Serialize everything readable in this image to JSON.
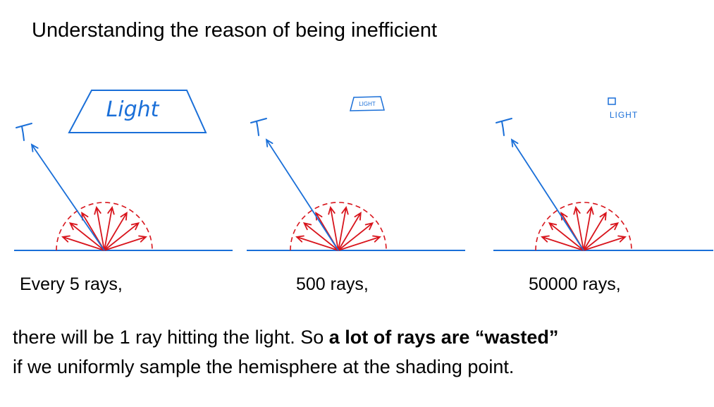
{
  "title": "Understanding the reason of being inefficient",
  "panels": [
    {
      "light_label": "Light",
      "caption": "Every 5 rays,"
    },
    {
      "light_label": "LIGHT",
      "caption": "500 rays,"
    },
    {
      "light_label": "LIGHT",
      "caption": "50000 rays,"
    }
  ],
  "body": {
    "line1": "there will be 1 ray hitting the light. So ",
    "line1_bold": "a lot of rays are “wasted”",
    "line2": "if we uniformly sample the hemisphere at the shading point."
  }
}
